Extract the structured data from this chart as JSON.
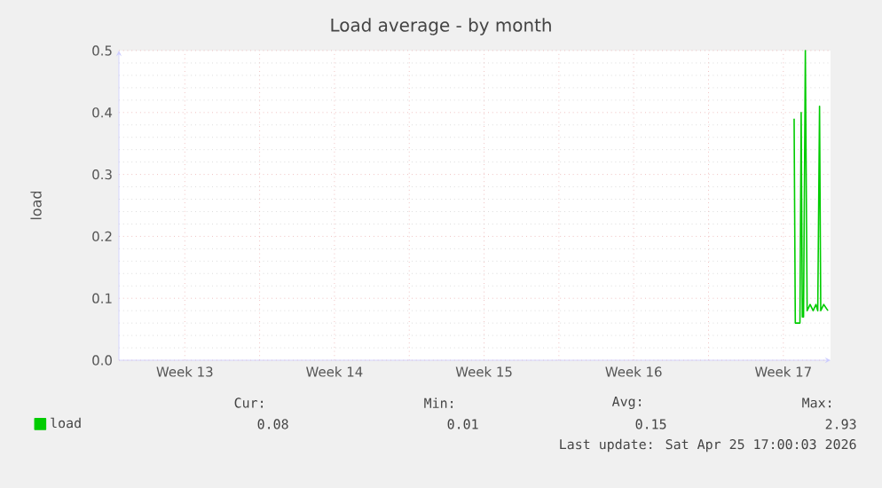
{
  "chart_data": {
    "type": "line",
    "title": "Load average - by month",
    "ylabel": "load",
    "xlim": [
      "2026-03-23T10:00",
      "2026-04-25T17:00"
    ],
    "ylim": [
      0,
      0.5
    ],
    "xticks": [
      {
        "value": "2026-03-26T12:00",
        "label": "Week 13"
      },
      {
        "value": "2026-03-30",
        "label": null
      },
      {
        "value": "2026-04-02T12:00",
        "label": "Week 14"
      },
      {
        "value": "2026-04-06",
        "label": null
      },
      {
        "value": "2026-04-09T12:00",
        "label": "Week 15"
      },
      {
        "value": "2026-04-13",
        "label": null
      },
      {
        "value": "2026-04-16T12:00",
        "label": "Week 16"
      },
      {
        "value": "2026-04-20",
        "label": null
      },
      {
        "value": "2026-04-23T12:00",
        "label": "Week 17"
      }
    ],
    "yticks": [
      {
        "value": 0,
        "label": "0.0"
      },
      {
        "value": 0.1,
        "label": "0.1"
      },
      {
        "value": 0.2,
        "label": "0.2"
      },
      {
        "value": 0.3,
        "label": "0.3"
      },
      {
        "value": 0.4,
        "label": "0.4"
      },
      {
        "value": 0.5,
        "label": "0.5"
      }
    ],
    "grid": true,
    "legend": "bottom left",
    "marker": "none",
    "line_style": "solid",
    "series": [
      {
        "name": "load",
        "color": "#00cc00",
        "x": [
          "2026-04-24T00:06",
          "2026-04-24T01:26",
          "2026-04-24T06:39",
          "2026-04-24T08:00",
          "2026-04-24T09:20",
          "2026-04-24T10:41",
          "2026-04-24T12:42",
          "2026-04-24T14:43",
          "2026-04-24T18:04",
          "2026-04-24T21:26",
          "2026-04-25T00:37",
          "2026-04-25T02:38",
          "2026-04-25T04:39",
          "2026-04-25T06:00",
          "2026-04-25T09:22",
          "2026-04-25T14:04"
        ],
        "values": [
          0.39,
          0.06,
          0.06,
          0.4,
          0.07,
          0.07,
          0.5,
          0.08,
          0.09,
          0.08,
          0.09,
          0.08,
          0.41,
          0.08,
          0.09,
          0.08
        ]
      }
    ],
    "annotations": [
      "Cur:",
      "Min:",
      "Avg:",
      "Max:",
      "0.08",
      "0.01",
      "0.15",
      "2.93",
      "Last update: Sat Apr 25 17:00:03 2026"
    ]
  }
}
